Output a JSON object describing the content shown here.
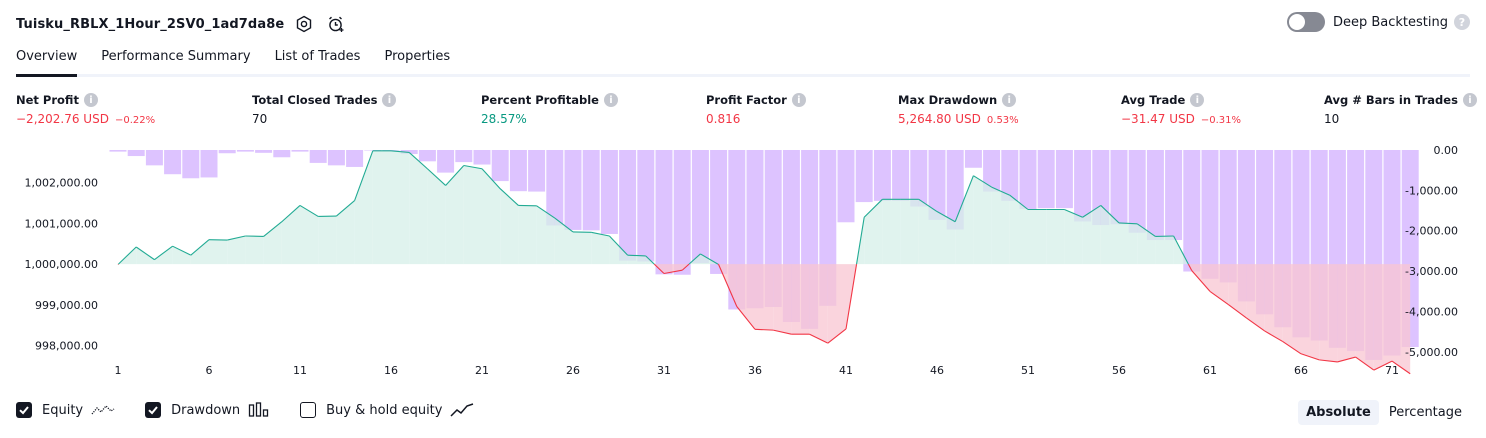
{
  "header": {
    "title": "Tuisku_RBLX_1Hour_2SV0_1ad7da8e",
    "deep_backtesting_label": "Deep Backtesting",
    "deep_backtesting_on": false,
    "help_glyph": "?"
  },
  "tabs": [
    {
      "label": "Overview",
      "active": true
    },
    {
      "label": "Performance Summary",
      "active": false
    },
    {
      "label": "List of Trades",
      "active": false
    },
    {
      "label": "Properties",
      "active": false
    }
  ],
  "metrics": [
    {
      "label": "Net Profit",
      "value": "−2,202.76 USD",
      "pct": "−0.22%",
      "tone": "neg"
    },
    {
      "label": "Total Closed Trades",
      "value": "70",
      "pct": "",
      "tone": "plain"
    },
    {
      "label": "Percent Profitable",
      "value": "28.57%",
      "pct": "",
      "tone": "pos"
    },
    {
      "label": "Profit Factor",
      "value": "0.816",
      "pct": "",
      "tone": "neg"
    },
    {
      "label": "Max Drawdown",
      "value": "5,264.80 USD",
      "pct": "0.53%",
      "tone": "neg"
    },
    {
      "label": "Avg Trade",
      "value": "−31.47 USD",
      "pct": "−0.31%",
      "tone": "neg"
    },
    {
      "label": "Avg # Bars in Trades",
      "value": "10",
      "pct": "",
      "tone": "plain"
    }
  ],
  "info_glyph": "i",
  "chart_data": {
    "type": "line",
    "x_ticks": [
      "1",
      "6",
      "11",
      "16",
      "21",
      "26",
      "31",
      "36",
      "41",
      "46",
      "51",
      "56",
      "61",
      "66",
      "71"
    ],
    "left_axis": {
      "ticks": [
        "1,002,000.00",
        "1,001,000.00",
        "1,000,000.00",
        "999,000.00",
        "998,000.00"
      ],
      "tick_values": [
        1002000,
        1001000,
        1000000,
        999000,
        998000
      ],
      "ylim": [
        997500,
        1002800
      ]
    },
    "right_axis": {
      "ticks": [
        "0.00",
        "-1,000.00",
        "-2,000.00",
        "-3,000.00",
        "-4,000.00",
        "-5,000.00"
      ],
      "tick_values": [
        0,
        -1000,
        -2000,
        -3000,
        -4000,
        -5000
      ],
      "ylim": [
        -5350,
        0
      ]
    },
    "baseline": 1000000,
    "series": [
      {
        "name": "Equity",
        "axis": "left",
        "colors": {
          "above_line": "#22ab94",
          "below_line": "#f23645",
          "above_fill": "#d5efe8",
          "below_fill": "#f8c6d1"
        },
        "values": [
          999990,
          1000420,
          1000110,
          1000440,
          1000220,
          1000600,
          1000590,
          1000690,
          1000680,
          1001040,
          1001440,
          1001170,
          1001180,
          1001560,
          1002780,
          1002780,
          1002740,
          1002340,
          1001930,
          1002420,
          1002340,
          1001850,
          1001440,
          1001430,
          1001130,
          1000790,
          1000780,
          1000690,
          1000220,
          1000200,
          999770,
          999850,
          1000250,
          999990,
          998960,
          998400,
          998380,
          998280,
          998280,
          998060,
          998410,
          1001150,
          1001590,
          1001590,
          1001590,
          1001290,
          1001040,
          1002170,
          1001890,
          1001690,
          1001340,
          1001340,
          1001340,
          1001150,
          1001440,
          1001010,
          1000990,
          1000680,
          1000690,
          999840,
          999330,
          999010,
          998680,
          998360,
          998100,
          997800,
          997650,
          997600,
          997720,
          997400,
          997620,
          997310
        ]
      },
      {
        "name": "Drawdown",
        "axis": "right",
        "color": "#ddc3ff",
        "values": [
          -40,
          -150,
          -380,
          -600,
          -700,
          -680,
          -80,
          -40,
          -70,
          -180,
          -40,
          -320,
          -380,
          -420,
          0,
          0,
          -100,
          -280,
          -560,
          -300,
          -360,
          -770,
          -1020,
          -1030,
          -1870,
          -1980,
          -1990,
          -2080,
          -2740,
          -2760,
          -3080,
          -3090,
          -2800,
          -3070,
          -3950,
          -3920,
          -3890,
          -4260,
          -4430,
          -3860,
          -1790,
          -1290,
          -1260,
          -1260,
          -1400,
          -1730,
          -1970,
          -440,
          -1030,
          -1260,
          -1460,
          -1440,
          -1440,
          -1770,
          -1860,
          -1840,
          -2050,
          -2230,
          -2230,
          -3010,
          -3190,
          -3280,
          -3750,
          -4070,
          -4390,
          -4640,
          -4720,
          -4900,
          -4980,
          -5200,
          -5090,
          -4880
        ]
      }
    ],
    "legend": [
      "Equity",
      "Drawdown",
      "Buy & hold equity"
    ]
  },
  "legend": {
    "items": [
      {
        "label": "Equity",
        "checked": true,
        "icon": "equity-line-icon"
      },
      {
        "label": "Drawdown",
        "checked": true,
        "icon": "drawdown-bars-icon"
      },
      {
        "label": "Buy & hold equity",
        "checked": false,
        "icon": "buy-hold-line-icon"
      }
    ]
  },
  "scale": {
    "absolute_label": "Absolute",
    "percentage_label": "Percentage",
    "active": "Absolute"
  }
}
